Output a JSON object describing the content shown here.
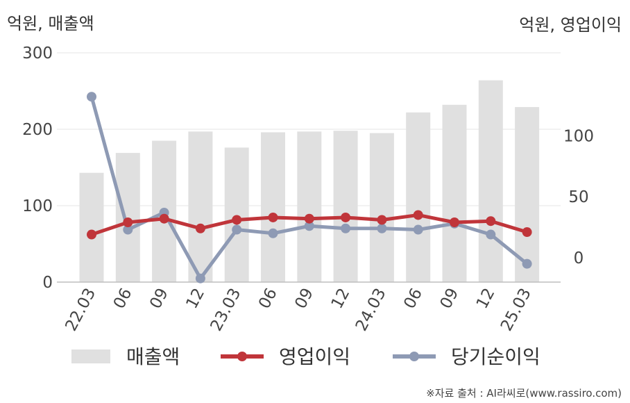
{
  "left_unit": "억원, 매출액",
  "right_unit": "억원, 영업이익",
  "source": "※자료 출처 : AI라씨로(www.rassiro.com)",
  "colors": {
    "revenue": "#e0e0e0",
    "operating": "#c0353a",
    "net": "#8e9ab4"
  },
  "chart_data": {
    "type": "bar",
    "categories": [
      "22.03",
      "06",
      "09",
      "12",
      "23.03",
      "06",
      "09",
      "12",
      "24.03",
      "06",
      "09",
      "12",
      "25.03"
    ],
    "left_axis": {
      "ticks": [
        "0",
        "100",
        "200",
        "300"
      ],
      "ylim": [
        0,
        300
      ]
    },
    "right_axis": {
      "ticks": [
        "0",
        "50",
        "100"
      ],
      "ylim": [
        -20,
        168
      ]
    },
    "series": [
      {
        "name": "매출액",
        "kind": "bar",
        "axis": "left",
        "values": [
          143,
          169,
          185,
          197,
          176,
          196,
          197,
          198,
          195,
          222,
          232,
          264,
          229
        ]
      },
      {
        "name": "영업이익",
        "kind": "line",
        "axis": "right",
        "values": [
          19,
          29,
          32,
          24,
          31,
          33,
          32,
          33,
          31,
          35,
          29,
          30,
          21
        ]
      },
      {
        "name": "당기순이익",
        "kind": "line",
        "axis": "right",
        "values": [
          132,
          23,
          37,
          -17,
          23,
          20,
          26,
          24,
          24,
          23,
          28,
          19,
          -5
        ]
      }
    ]
  }
}
